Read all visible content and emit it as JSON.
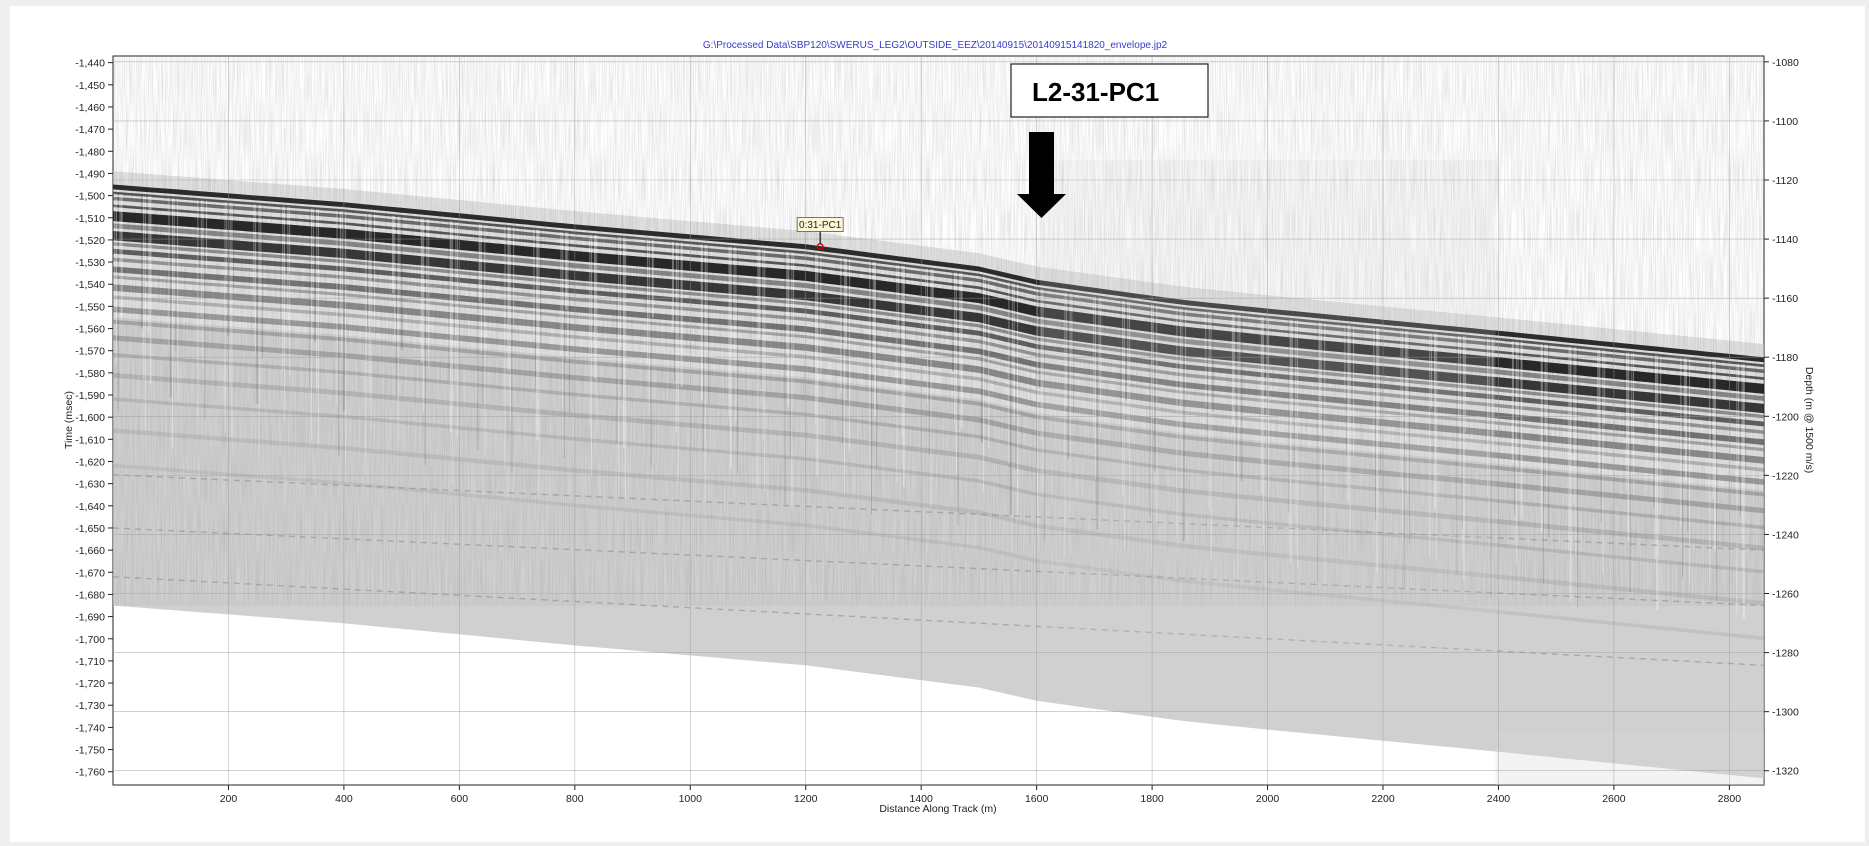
{
  "file_path": "G:\\Processed  Data\\SBP120\\SWERUS_LEG2\\OUTSIDE_EEZ\\20140915\\20140915141820_envelope.jp2",
  "callout_label": "L2-31-PC1",
  "marker_label": "0:31-PC1",
  "colors": {
    "background": "#ffffff",
    "grid": "#9a9a9a",
    "reflector": "#111111",
    "marker": "#d40000",
    "callout_arrow": "#000000",
    "file_title": "#3a3acb"
  },
  "chart_data": {
    "type": "seismic-profile",
    "xlabel": "Distance Along Track (m)",
    "ylabel_left": "Time (msec)",
    "ylabel_right": "Depth (m @ 1500 m/s)",
    "x_ticks": [
      200,
      400,
      600,
      800,
      1000,
      1200,
      1400,
      1600,
      1800,
      2000,
      2200,
      2400,
      2600,
      2800
    ],
    "left_ticks": [
      -1440,
      -1450,
      -1460,
      -1470,
      -1480,
      -1490,
      -1500,
      -1510,
      -1520,
      -1530,
      -1540,
      -1550,
      -1560,
      -1570,
      -1580,
      -1590,
      -1600,
      -1610,
      -1620,
      -1630,
      -1640,
      -1650,
      -1660,
      -1670,
      -1680,
      -1690,
      -1700,
      -1710,
      -1720,
      -1730,
      -1740,
      -1750,
      -1760
    ],
    "left_tick_labels": [
      "-1,440",
      "-1,450",
      "-1,460",
      "-1,470",
      "-1,480",
      "-1,490",
      "-1,500",
      "-1,510",
      "-1,520",
      "-1,530",
      "-1,540",
      "-1,550",
      "-1,560",
      "-1,570",
      "-1,580",
      "-1,590",
      "-1,600",
      "-1,610",
      "-1,620",
      "-1,630",
      "-1,640",
      "-1,650",
      "-1,660",
      "-1,670",
      "-1,680",
      "-1,690",
      "-1,700",
      "-1,710",
      "-1,720",
      "-1,730",
      "-1,740",
      "-1,750",
      "-1,760"
    ],
    "right_ticks": [
      -1080,
      -1100,
      -1120,
      -1140,
      -1160,
      -1180,
      -1200,
      -1220,
      -1240,
      -1260,
      -1280,
      -1300,
      -1320
    ],
    "xlim": [
      0,
      2860
    ],
    "ylim_time": [
      -1766,
      -1437
    ],
    "seafloor": {
      "x": [
        0,
        400,
        800,
        1200,
        1500,
        1600,
        1850,
        2000,
        2400,
        2860
      ],
      "time_msec": [
        -1495,
        -1503,
        -1513,
        -1522,
        -1532,
        -1538,
        -1547,
        -1551,
        -1561,
        -1573
      ]
    },
    "core_site": {
      "label": "0:31-PC1",
      "x": 1225,
      "time_msec": -1523
    },
    "grid": true
  }
}
